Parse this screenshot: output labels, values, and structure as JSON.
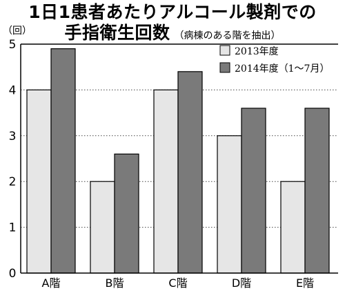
{
  "chart_data": {
    "type": "bar",
    "title": "1日1患者あたりアルコール製剤での",
    "title_line2": "手指衛生回数",
    "subtitle": "（病棟のある階を抽出）",
    "ylabel": "（回）",
    "xlabel": "",
    "ylim": [
      0,
      5
    ],
    "yticks": [
      "0",
      "1",
      "2",
      "3",
      "4",
      "5"
    ],
    "categories": [
      "A階",
      "B階",
      "C階",
      "D階",
      "E階"
    ],
    "series": [
      {
        "name": "2013年度",
        "color": "#e6e6e6",
        "values": [
          4.0,
          2.0,
          4.0,
          3.0,
          2.0
        ]
      },
      {
        "name": "2014年度（1～7月）",
        "color": "#7a7a7a",
        "values": [
          4.9,
          2.6,
          4.4,
          3.6,
          3.6
        ]
      }
    ],
    "grid": "dotted horizontal",
    "legend_position": "top-right"
  }
}
